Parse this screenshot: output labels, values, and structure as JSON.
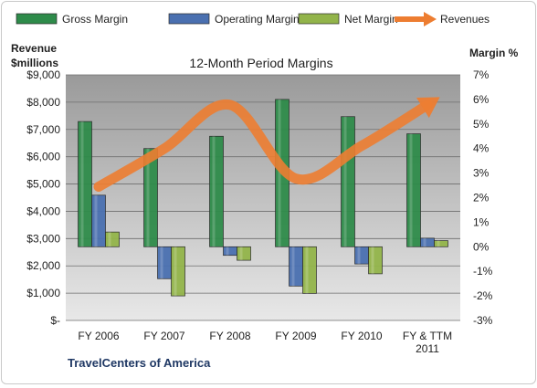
{
  "chart_data": {
    "type": "bar",
    "title": "12-Month Period Margins",
    "company": "TravelCenters of America",
    "left_axis_title": [
      "Revenue",
      "$millions"
    ],
    "right_axis_title": "Margin %",
    "categories": [
      [
        "FY 2006"
      ],
      [
        "FY 2007"
      ],
      [
        "FY 2008"
      ],
      [
        "FY 2009"
      ],
      [
        "FY 2010"
      ],
      [
        "FY & TTM",
        "2011"
      ]
    ],
    "left_axis": {
      "min": 0,
      "max": 9000,
      "step": 1000,
      "tick_labels": [
        "$-",
        "$1,000",
        "$2,000",
        "$3,000",
        "$4,000",
        "$5,000",
        "$6,000",
        "$7,000",
        "$8,000",
        "$9,000"
      ]
    },
    "right_axis": {
      "min": -3,
      "max": 7,
      "step": 1,
      "tick_labels": [
        "-3%",
        "-2%",
        "-1%",
        "0%",
        "1%",
        "2%",
        "3%",
        "4%",
        "5%",
        "6%",
        "7%"
      ]
    },
    "legend_position": "top",
    "legend": [
      {
        "name": "Gross Margin",
        "marker": "bar",
        "color": "#2e8b4a"
      },
      {
        "name": "Operating Margin",
        "marker": "bar",
        "color": "#4a70b0"
      },
      {
        "name": "Net Margin",
        "marker": "bar",
        "color": "#92b44a"
      },
      {
        "name": "Revenues",
        "marker": "arrow",
        "color": "#ed7d31"
      }
    ],
    "series": [
      {
        "name": "Gross Margin",
        "axis": "right",
        "unit": "%",
        "color": "#2e8b4a",
        "values": [
          5.1,
          4.0,
          4.5,
          6.0,
          5.3,
          4.6
        ]
      },
      {
        "name": "Operating Margin",
        "axis": "right",
        "unit": "%",
        "color": "#4a70b0",
        "values": [
          2.1,
          -1.3,
          -0.35,
          -1.6,
          -0.7,
          0.35
        ]
      },
      {
        "name": "Net Margin",
        "axis": "right",
        "unit": "%",
        "color": "#92b44a",
        "values": [
          0.6,
          -2.0,
          -0.55,
          -1.9,
          -1.1,
          0.25
        ]
      },
      {
        "name": "Revenues",
        "axis": "left",
        "unit": "$millions",
        "type": "line",
        "color": "#ed7d31",
        "values": [
          4900,
          6300,
          7900,
          5200,
          6400,
          7900
        ]
      }
    ]
  }
}
